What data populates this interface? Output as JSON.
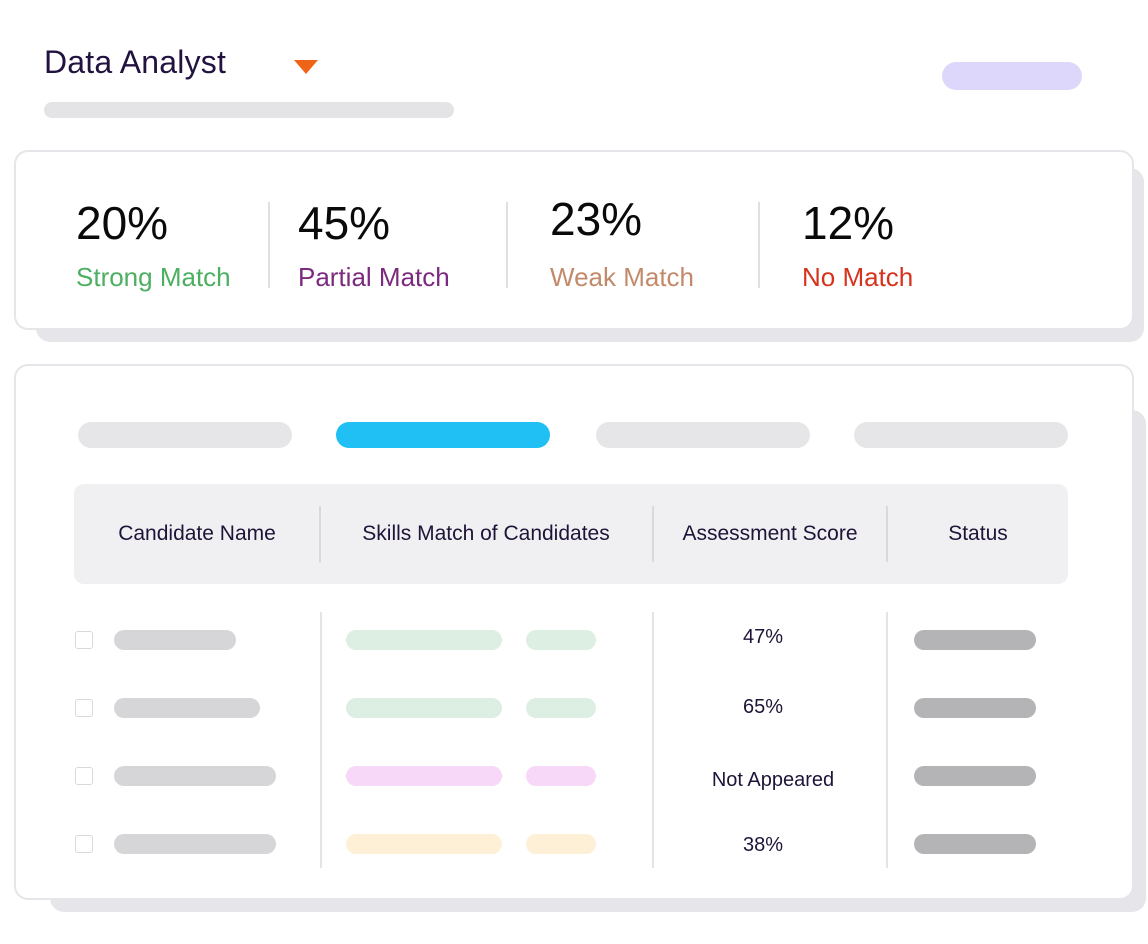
{
  "header": {
    "title": "Data Analyst",
    "dropdown_icon": "caret-down-icon",
    "accent_color": "#f06418"
  },
  "stats": [
    {
      "value": "20%",
      "label": "Strong Match",
      "color": "#4caf61"
    },
    {
      "value": "45%",
      "label": "Partial Match",
      "color": "#7b2a7f"
    },
    {
      "value": "23%",
      "label": "Weak Match",
      "color": "#c28a6a"
    },
    {
      "value": "12%",
      "label": "No Match",
      "color": "#d6331c"
    }
  ],
  "tabs": {
    "active_index": 1,
    "active_color": "#21c0f4"
  },
  "table": {
    "headers": [
      "Candidate Name",
      "Skills Match of Candidates",
      "Assessment Score",
      "Status"
    ],
    "rows": [
      {
        "score": "47%",
        "skill_color": "#ddefe3"
      },
      {
        "score": "65%",
        "skill_color": "#ddefe3"
      },
      {
        "score": "Not Appeared",
        "skill_color": "#f8d8f8"
      },
      {
        "score": "38%",
        "skill_color": "#fdf0d6"
      }
    ]
  }
}
